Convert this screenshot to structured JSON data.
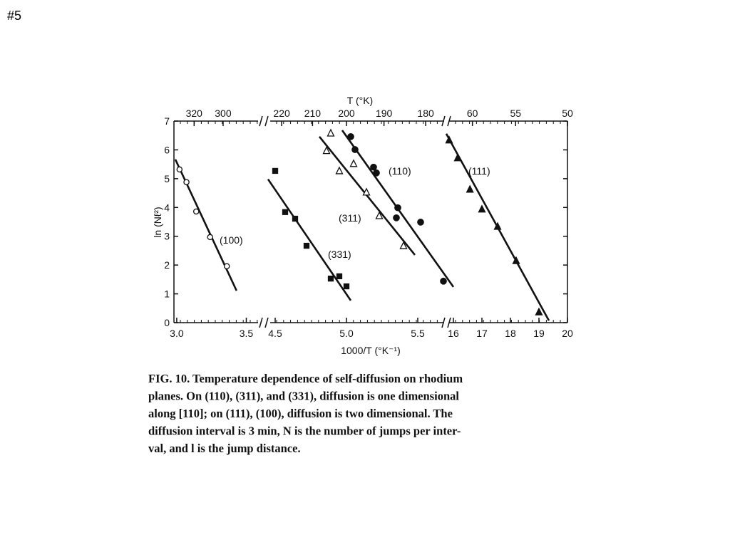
{
  "slide_label": "#5",
  "chart_data": {
    "type": "scatter",
    "x2label": "T (°K)",
    "xlabel": "1000/T (°K⁻¹)",
    "ylabel": "ln (Nℓ²)",
    "ylim": [
      0,
      7
    ],
    "yticks": [
      0,
      1,
      2,
      3,
      4,
      5,
      6,
      7
    ],
    "x_segments": [
      {
        "xlim": [
          2.98,
          3.6
        ],
        "xticks": [
          {
            "value": 3,
            "label": "3.0"
          },
          3.5
        ],
        "x2ticks": [
          320,
          300
        ]
      },
      {
        "xlim": [
          4.45,
          5.7
        ],
        "xticks": [
          4.5,
          {
            "value": 5,
            "label": "5.0"
          },
          5.5
        ],
        "x2ticks": [
          220,
          210,
          200,
          190,
          180
        ]
      },
      {
        "xlim": [
          15.75,
          20
        ],
        "xticks": [
          16,
          17,
          18,
          19,
          20
        ],
        "x2ticks": [
          60,
          55,
          50
        ]
      }
    ],
    "series": [
      {
        "name": "(100)",
        "segment": 0,
        "marker": "open-circle",
        "x": [
          3.02,
          3.07,
          3.14,
          3.24,
          3.36
        ],
        "values": [
          5.32,
          4.88,
          3.86,
          2.97,
          1.96
        ],
        "fit_x": [
          2.99,
          3.43
        ],
        "fit_y": [
          5.67,
          1.11
        ]
      },
      {
        "name": "(331)",
        "segment": 1,
        "marker": "filled-square",
        "x": [
          4.5,
          4.57,
          4.64,
          4.72,
          4.89,
          4.95,
          5.0
        ],
        "values": [
          5.27,
          3.84,
          3.61,
          2.67,
          1.53,
          1.61,
          1.26
        ],
        "fit_x": [
          4.45,
          5.03
        ],
        "fit_y": [
          4.98,
          0.77
        ]
      },
      {
        "name": "(311)",
        "segment": 1,
        "marker": "open-triangle",
        "x": [
          4.89,
          4.86,
          4.95,
          5.05,
          5.14,
          5.23,
          5.4
        ],
        "values": [
          6.58,
          5.97,
          5.27,
          5.52,
          4.53,
          3.71,
          2.67
        ],
        "fit_x": [
          4.81,
          5.48
        ],
        "fit_y": [
          6.46,
          2.35
        ]
      },
      {
        "name": "(110)",
        "segment": 1,
        "marker": "filled-circle",
        "x": [
          5.03,
          5.06,
          5.19,
          5.21,
          5.36,
          5.35,
          5.52,
          5.68
        ],
        "values": [
          6.46,
          6.01,
          5.4,
          5.2,
          3.99,
          3.64,
          3.49,
          1.44
        ],
        "fit_x": [
          4.97,
          5.75
        ],
        "fit_y": [
          6.68,
          1.24
        ]
      },
      {
        "name": "(111)",
        "segment": 2,
        "marker": "filled-triangle",
        "x": [
          15.85,
          16.15,
          16.58,
          17.0,
          17.55,
          18.2,
          19.0
        ],
        "values": [
          6.34,
          5.72,
          4.63,
          3.94,
          3.34,
          2.15,
          0.37
        ],
        "fit_x": [
          15.75,
          19.35
        ],
        "fit_y": [
          6.56,
          0.07
        ]
      }
    ]
  },
  "caption_lines": [
    "FIG. 10.  Temperature dependence of self-diffusion on rhodium",
    "planes.  On (110), (311), and (331), diffusion is one dimensional",
    "along [110]; on (111), (100), diffusion is two dimensional.  The",
    "diffusion interval is 3 min, N is the number of jumps per inter-",
    "val, and l is the jump distance."
  ]
}
